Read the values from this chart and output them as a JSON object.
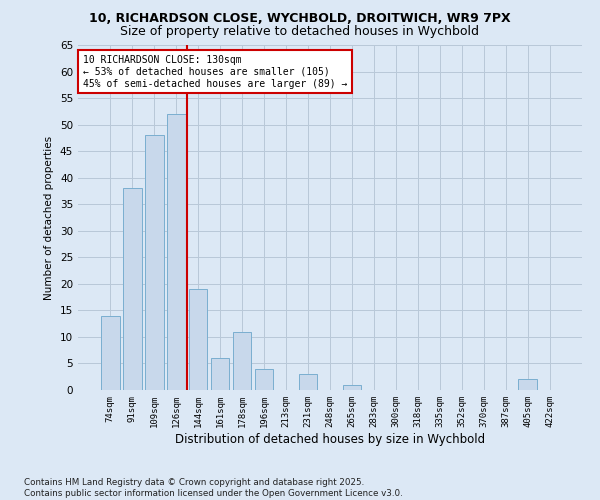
{
  "title_line1": "10, RICHARDSON CLOSE, WYCHBOLD, DROITWICH, WR9 7PX",
  "title_line2": "Size of property relative to detached houses in Wychbold",
  "xlabel": "Distribution of detached houses by size in Wychbold",
  "ylabel": "Number of detached properties",
  "categories": [
    "74sqm",
    "91sqm",
    "109sqm",
    "126sqm",
    "144sqm",
    "161sqm",
    "178sqm",
    "196sqm",
    "213sqm",
    "231sqm",
    "248sqm",
    "265sqm",
    "283sqm",
    "300sqm",
    "318sqm",
    "335sqm",
    "352sqm",
    "370sqm",
    "387sqm",
    "405sqm",
    "422sqm"
  ],
  "values": [
    14,
    38,
    48,
    52,
    19,
    6,
    11,
    4,
    0,
    3,
    0,
    1,
    0,
    0,
    0,
    0,
    0,
    0,
    0,
    2,
    0
  ],
  "bar_color": "#c8d8eb",
  "bar_edge_color": "#7aaed0",
  "grid_color": "#b8c8d8",
  "vline_x_index": 3,
  "vline_color": "#cc0000",
  "annotation_text": "10 RICHARDSON CLOSE: 130sqm\n← 53% of detached houses are smaller (105)\n45% of semi-detached houses are larger (89) →",
  "annotation_box_color": "#ffffff",
  "annotation_box_edge_color": "#cc0000",
  "annotation_fontsize": 7.0,
  "ylim": [
    0,
    65
  ],
  "yticks": [
    0,
    5,
    10,
    15,
    20,
    25,
    30,
    35,
    40,
    45,
    50,
    55,
    60,
    65
  ],
  "footnote": "Contains HM Land Registry data © Crown copyright and database right 2025.\nContains public sector information licensed under the Open Government Licence v3.0.",
  "bg_color": "#dce8f5",
  "plot_bg_color": "#dce8f5",
  "title_fontsize": 9,
  "subtitle_fontsize": 9
}
